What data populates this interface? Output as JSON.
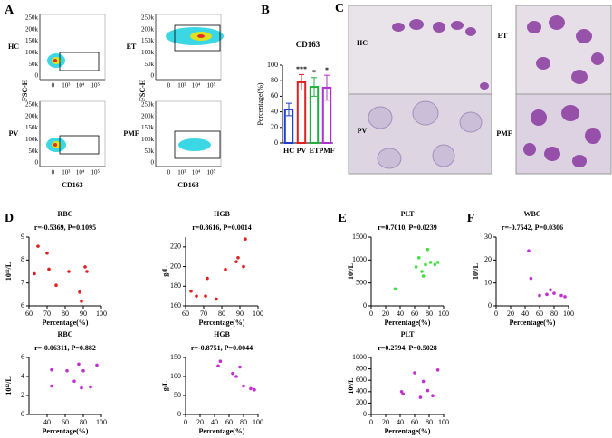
{
  "figure": {
    "panel_letters": [
      "A",
      "B",
      "C",
      "D",
      "E",
      "F"
    ],
    "panel_a": {
      "ylabel": "FSC-H",
      "xlabel": "CD163",
      "samples": [
        "HC",
        "PV",
        "ET",
        "PMF"
      ],
      "yticks": [
        "250k",
        "200k",
        "150k",
        "100k",
        "50k",
        "0"
      ],
      "xticks": [
        "0",
        "10³",
        "10⁴",
        "10⁵"
      ]
    },
    "panel_c": {
      "samples": [
        "HC",
        "ET",
        "PV",
        "PMF"
      ]
    }
  },
  "chart_data": [
    {
      "type": "bar",
      "title": "CD163",
      "ylabel": "Percentage(%)",
      "categories": [
        "HC",
        "PV",
        "ET",
        "PMF"
      ],
      "values": [
        43,
        78,
        72,
        71
      ],
      "errors": [
        8,
        10,
        12,
        16
      ],
      "colors": [
        "#1f3fd0",
        "#e02020",
        "#20b040",
        "#b030d0"
      ],
      "significance": [
        null,
        "***",
        "*",
        "*"
      ],
      "ylim": [
        0,
        100
      ],
      "yticks": [
        0,
        20,
        40,
        60,
        80,
        100
      ]
    },
    {
      "type": "scatter",
      "title": "RBC",
      "subtitle": "r=-0.5369, P=0.1095",
      "xlabel": "Percentage(%)",
      "ylabel": "10¹²/L",
      "color": "#e02020",
      "x": [
        63,
        65,
        70,
        71,
        75,
        82,
        88,
        89,
        91,
        92
      ],
      "values": [
        7.4,
        8.6,
        8.3,
        7.6,
        6.9,
        7.5,
        6.6,
        6.2,
        7.7,
        7.5
      ],
      "xlim": [
        60,
        100
      ],
      "ylim": [
        6,
        9
      ],
      "xticks": [
        60,
        70,
        80,
        90,
        100
      ],
      "yticks": [
        6,
        7,
        8,
        9
      ]
    },
    {
      "type": "scatter",
      "title": "HGB",
      "subtitle": "r=0.8616, P=0.0014",
      "xlabel": "Percentage(%)",
      "ylabel": "g/L",
      "color": "#e02020",
      "x": [
        63,
        66,
        71,
        72,
        77,
        82,
        88,
        89,
        92,
        93
      ],
      "values": [
        175,
        170,
        170,
        188,
        167,
        197,
        205,
        209,
        200,
        228
      ],
      "xlim": [
        60,
        100
      ],
      "ylim": [
        160,
        230
      ],
      "xticks": [
        60,
        70,
        80,
        90,
        100
      ],
      "yticks": [
        160,
        180,
        200,
        220
      ]
    },
    {
      "type": "scatter",
      "title": "PLT",
      "subtitle": "r=0.7010, P=0.0239",
      "xlabel": "Percentage(%)",
      "ylabel": "10⁹/L",
      "color": "#40e040",
      "x": [
        33,
        62,
        66,
        70,
        72,
        75,
        78,
        82,
        88,
        92
      ],
      "values": [
        370,
        850,
        1050,
        750,
        650,
        900,
        1230,
        950,
        900,
        950
      ],
      "xlim": [
        0,
        100
      ],
      "ylim": [
        0,
        1500
      ],
      "xticks": [
        0,
        20,
        40,
        60,
        80,
        100
      ],
      "yticks": [
        0,
        500,
        1000,
        1500
      ]
    },
    {
      "type": "scatter",
      "title": "WBC",
      "subtitle": "r=-0.7542, P=0.0306",
      "xlabel": "Percentage(%)",
      "ylabel": "10⁹/L",
      "color": "#c030d0",
      "x": [
        45,
        48,
        60,
        70,
        75,
        80,
        90,
        95
      ],
      "values": [
        24,
        12,
        4.5,
        5,
        7,
        5.5,
        4.5,
        4
      ],
      "xlim": [
        0,
        100
      ],
      "ylim": [
        0,
        30
      ],
      "xticks": [
        0,
        20,
        40,
        60,
        80,
        100
      ],
      "yticks": [
        0,
        10,
        20,
        30
      ]
    },
    {
      "type": "scatter",
      "title": "RBC",
      "subtitle": "r=-0.06311, P=0.882",
      "xlabel": "Percentage(%)",
      "ylabel": "10¹²/L",
      "color": "#c030d0",
      "x": [
        45,
        45,
        62,
        70,
        75,
        78,
        80,
        88,
        95
      ],
      "values": [
        4.7,
        3,
        4.6,
        3.5,
        5.3,
        2.8,
        4.6,
        2.9,
        5.2
      ],
      "xlim": [
        20,
        100
      ],
      "ylim": [
        0,
        6
      ],
      "xticks": [
        40,
        60,
        80,
        100
      ],
      "yticks": [
        0,
        2,
        4,
        6
      ]
    },
    {
      "type": "scatter",
      "title": "HGB",
      "subtitle": "r=-0.8751, P=0.0044",
      "xlabel": "Percentage(%)",
      "ylabel": "g/L",
      "color": "#c030d0",
      "x": [
        45,
        48,
        65,
        70,
        75,
        80,
        90,
        95
      ],
      "values": [
        128,
        140,
        108,
        100,
        125,
        75,
        68,
        65
      ],
      "xlim": [
        0,
        100
      ],
      "ylim": [
        0,
        150
      ],
      "xticks": [
        0,
        20,
        40,
        60,
        80,
        100
      ],
      "yticks": [
        0,
        50,
        100,
        150
      ]
    },
    {
      "type": "scatter",
      "title": "PLT",
      "subtitle": "r=0.2794, P=0.5028",
      "xlabel": "Percentage(%)",
      "ylabel": "10⁹/L",
      "color": "#c030d0",
      "x": [
        42,
        44,
        60,
        68,
        72,
        78,
        85,
        92
      ],
      "values": [
        400,
        360,
        730,
        300,
        580,
        420,
        330,
        780
      ],
      "xlim": [
        0,
        100
      ],
      "ylim": [
        0,
        1000
      ],
      "xticks": [
        0,
        20,
        40,
        60,
        80,
        100
      ],
      "yticks": [
        0,
        200,
        400,
        600,
        800,
        1000
      ]
    }
  ]
}
